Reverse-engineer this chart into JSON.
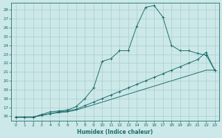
{
  "title": "",
  "xlabel": "Humidex (Indice chaleur)",
  "bg_color": "#cce8e8",
  "grid_color": "#aacccc",
  "line_color": "#1a6b6b",
  "xlim": [
    -0.5,
    23.5
  ],
  "ylim": [
    15.5,
    28.8
  ],
  "xticks": [
    0,
    1,
    2,
    3,
    4,
    5,
    6,
    7,
    8,
    9,
    10,
    11,
    12,
    13,
    14,
    15,
    16,
    17,
    18,
    19,
    20,
    21,
    22,
    23
  ],
  "yticks": [
    16,
    17,
    18,
    19,
    20,
    21,
    22,
    23,
    24,
    25,
    26,
    27,
    28
  ],
  "line1_x": [
    0,
    1,
    2,
    3,
    4,
    5,
    6,
    7,
    8,
    9,
    10,
    11,
    12,
    13,
    14,
    15,
    16,
    17,
    18,
    19,
    20,
    21,
    22,
    23
  ],
  "line1_y": [
    15.9,
    15.9,
    15.9,
    16.2,
    16.5,
    16.6,
    16.7,
    17.1,
    18.0,
    19.2,
    22.2,
    22.5,
    23.4,
    23.4,
    26.2,
    28.3,
    28.5,
    27.2,
    24.0,
    23.4,
    23.4,
    23.1,
    22.9,
    21.2
  ],
  "line2_x": [
    0,
    1,
    2,
    3,
    4,
    5,
    6,
    7,
    8,
    9,
    10,
    11,
    12,
    13,
    14,
    15,
    16,
    17,
    18,
    19,
    20,
    21,
    22,
    23
  ],
  "line2_y": [
    15.9,
    15.9,
    15.9,
    16.1,
    16.3,
    16.5,
    16.6,
    16.8,
    17.2,
    17.6,
    18.0,
    18.4,
    18.8,
    19.2,
    19.6,
    20.0,
    20.4,
    20.8,
    21.2,
    21.6,
    22.0,
    22.4,
    23.2,
    21.2
  ],
  "line3_x": [
    0,
    1,
    2,
    3,
    4,
    5,
    6,
    7,
    8,
    9,
    10,
    11,
    12,
    13,
    14,
    15,
    16,
    17,
    18,
    19,
    20,
    21,
    22,
    23
  ],
  "line3_y": [
    15.9,
    15.9,
    15.9,
    16.1,
    16.3,
    16.4,
    16.5,
    16.7,
    17.0,
    17.3,
    17.6,
    17.9,
    18.2,
    18.5,
    18.8,
    19.1,
    19.4,
    19.7,
    20.0,
    20.3,
    20.6,
    20.9,
    21.2,
    21.2
  ]
}
